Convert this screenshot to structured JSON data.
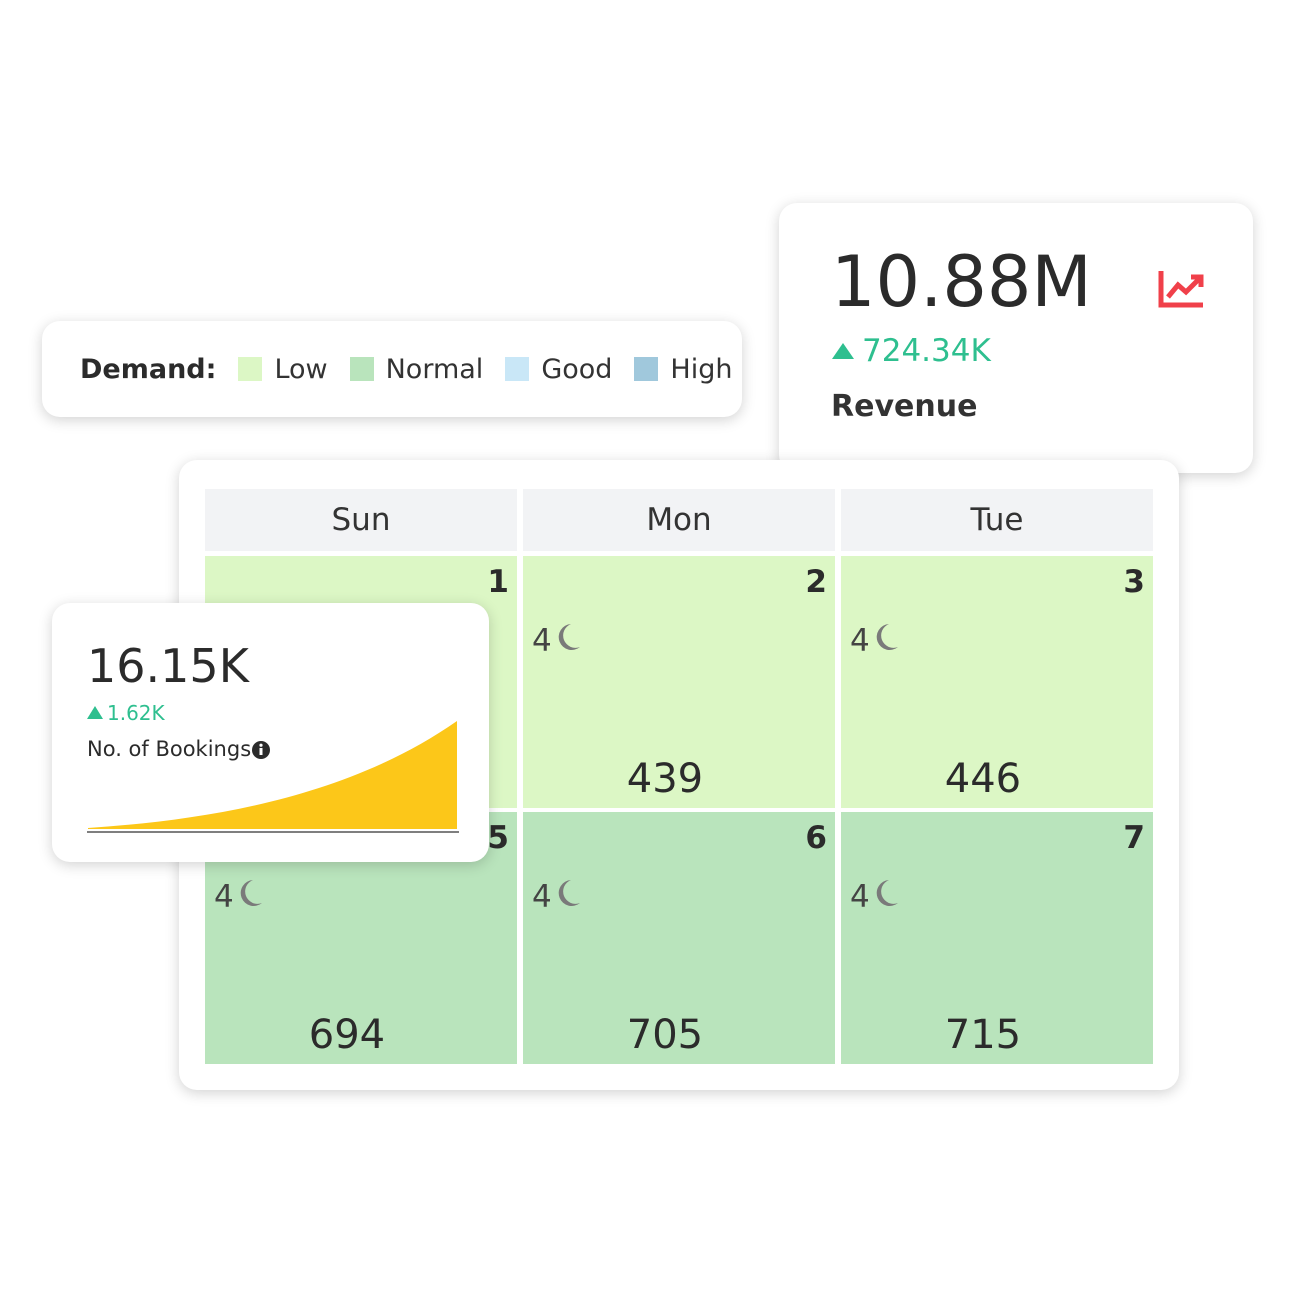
{
  "legend": {
    "title": "Demand:",
    "items": [
      {
        "label": "Low",
        "color": "#dcf7c5"
      },
      {
        "label": "Normal",
        "color": "#b9e4bc"
      },
      {
        "label": "Good",
        "color": "#c9e7f7"
      },
      {
        "label": "High",
        "color": "#a0c8dc"
      }
    ]
  },
  "revenue": {
    "value": "10.88M",
    "change": "724.34K",
    "label": "Revenue"
  },
  "bookings": {
    "value": "16.15K",
    "change": "1.62K",
    "label": "No. of Bookings"
  },
  "calendar": {
    "headers": [
      "Sun",
      "Mon",
      "Tue"
    ],
    "cells": [
      {
        "day": "1",
        "color": "#dcf7c5"
      },
      {
        "day": "2",
        "nights": "4",
        "count": "439",
        "color": "#dcf7c5"
      },
      {
        "day": "3",
        "nights": "4",
        "count": "446",
        "color": "#dcf7c5"
      },
      {
        "day": "5",
        "nights": "4",
        "count": "694",
        "color": "#b9e4bc"
      },
      {
        "day": "6",
        "nights": "4",
        "count": "705",
        "color": "#b9e4bc"
      },
      {
        "day": "7",
        "nights": "4",
        "count": "715",
        "color": "#b9e4bc"
      }
    ]
  }
}
